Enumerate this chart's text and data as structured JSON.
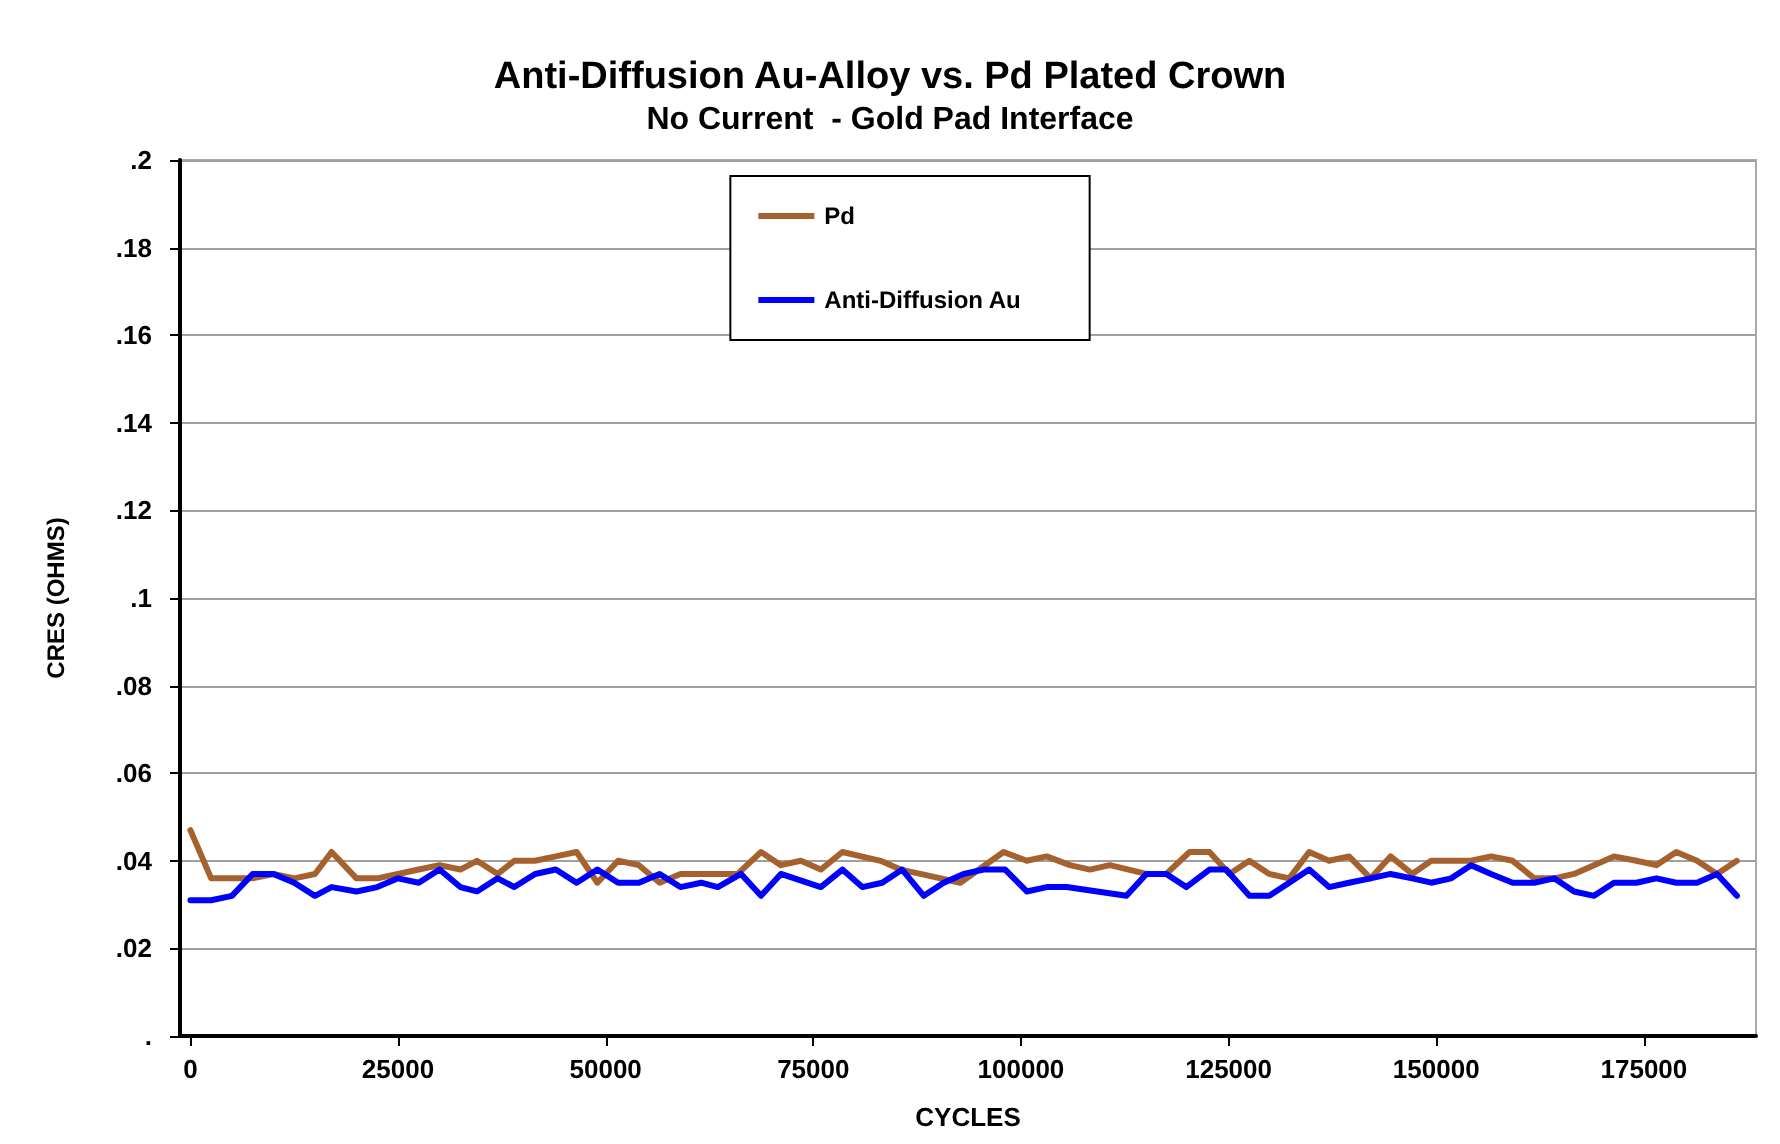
{
  "chart_data": {
    "type": "line",
    "title": "Anti-Diffusion Au-Alloy vs. Pd Plated Crown",
    "subtitle": "No Current  - Gold Pad Interface",
    "xlabel": "CYCLES",
    "ylabel": "CRES (OHMS)",
    "xlim": [
      -1250,
      188500
    ],
    "xticks": [
      0,
      25000,
      50000,
      75000,
      100000,
      125000,
      150000,
      175000
    ],
    "ylim": [
      0,
      0.2
    ],
    "yticks": [
      {
        "value": 0,
        "label": "."
      },
      {
        "value": 0.02,
        "label": ".02"
      },
      {
        "value": 0.04,
        "label": ".04"
      },
      {
        "value": 0.06,
        "label": ".06"
      },
      {
        "value": 0.08,
        "label": ".08"
      },
      {
        "value": 0.1,
        "label": ".1"
      },
      {
        "value": 0.12,
        "label": ".12"
      },
      {
        "value": 0.14,
        "label": ".14"
      },
      {
        "value": 0.16,
        "label": ".16"
      },
      {
        "value": 0.18,
        "label": ".18"
      },
      {
        "value": 0.2,
        "label": ".2"
      }
    ],
    "grid": "y",
    "legend": "top",
    "marker": "none",
    "line_style": "solid",
    "series": [
      {
        "name": "Pd",
        "color": "#a5622e",
        "x": [
          0,
          2500,
          5000,
          7500,
          10000,
          12500,
          15000,
          17000,
          20000,
          22500,
          25000,
          27500,
          30000,
          32500,
          34500,
          37000,
          39000,
          41500,
          44000,
          46500,
          49000,
          51500,
          54000,
          56500,
          59000,
          61500,
          65900,
          68700,
          71100,
          73500,
          75900,
          78500,
          83100,
          85500,
          87900,
          92700,
          97900,
          100700,
          103100,
          105900,
          108300,
          110700,
          115100,
          117500,
          120300,
          122700,
          125100,
          127500,
          129900,
          132300,
          134700,
          137100,
          139500,
          142100,
          144500,
          147100,
          149400,
          151800,
          154200,
          156600,
          159200,
          161800,
          164200,
          166600,
          169000,
          171400,
          174100,
          176500,
          178900,
          181400,
          183800,
          186200
        ],
        "values": [
          0.047,
          0.036,
          0.036,
          0.036,
          0.037,
          0.036,
          0.037,
          0.042,
          0.036,
          0.036,
          0.037,
          0.038,
          0.039,
          0.038,
          0.04,
          0.037,
          0.04,
          0.04,
          0.041,
          0.042,
          0.035,
          0.04,
          0.039,
          0.035,
          0.037,
          0.037,
          0.037,
          0.042,
          0.039,
          0.04,
          0.038,
          0.042,
          0.04,
          0.038,
          0.037,
          0.035,
          0.042,
          0.04,
          0.041,
          0.039,
          0.038,
          0.039,
          0.037,
          0.037,
          0.042,
          0.042,
          0.037,
          0.04,
          0.037,
          0.036,
          0.042,
          0.04,
          0.041,
          0.036,
          0.041,
          0.037,
          0.04,
          0.04,
          0.04,
          0.041,
          0.04,
          0.036,
          0.036,
          0.037,
          0.039,
          0.041,
          0.04,
          0.039,
          0.042,
          0.04,
          0.037,
          0.04
        ]
      },
      {
        "name": "Anti-Diffusion Au",
        "color": "#0000ff",
        "x": [
          0,
          2500,
          5000,
          7500,
          10000,
          12500,
          15000,
          17000,
          20000,
          22500,
          25000,
          27500,
          30000,
          32500,
          34500,
          37000,
          39000,
          41500,
          44000,
          46500,
          49000,
          51500,
          54000,
          56500,
          59000,
          61500,
          63500,
          66300,
          68700,
          71100,
          75900,
          78500,
          80900,
          83300,
          85700,
          88300,
          90700,
          93100,
          95500,
          98100,
          100700,
          103100,
          105500,
          112700,
          115100,
          117500,
          119900,
          122700,
          124700,
          127500,
          129900,
          132300,
          134700,
          137100,
          139500,
          142100,
          144500,
          147100,
          149400,
          151800,
          154200,
          156600,
          159200,
          161800,
          164200,
          166600,
          169000,
          171400,
          174100,
          176500,
          178900,
          181400,
          183800,
          186200
        ],
        "values": [
          0.031,
          0.031,
          0.032,
          0.037,
          0.037,
          0.035,
          0.032,
          0.034,
          0.033,
          0.034,
          0.036,
          0.035,
          0.038,
          0.034,
          0.033,
          0.036,
          0.034,
          0.037,
          0.038,
          0.035,
          0.038,
          0.035,
          0.035,
          0.037,
          0.034,
          0.035,
          0.034,
          0.037,
          0.032,
          0.037,
          0.034,
          0.038,
          0.034,
          0.035,
          0.038,
          0.032,
          0.035,
          0.037,
          0.038,
          0.038,
          0.033,
          0.034,
          0.034,
          0.032,
          0.037,
          0.037,
          0.034,
          0.038,
          0.038,
          0.032,
          0.032,
          0.035,
          0.038,
          0.034,
          0.035,
          0.036,
          0.037,
          0.036,
          0.035,
          0.036,
          0.039,
          0.037,
          0.035,
          0.035,
          0.036,
          0.033,
          0.032,
          0.035,
          0.035,
          0.036,
          0.035,
          0.035,
          0.037,
          0.032
        ]
      }
    ]
  }
}
